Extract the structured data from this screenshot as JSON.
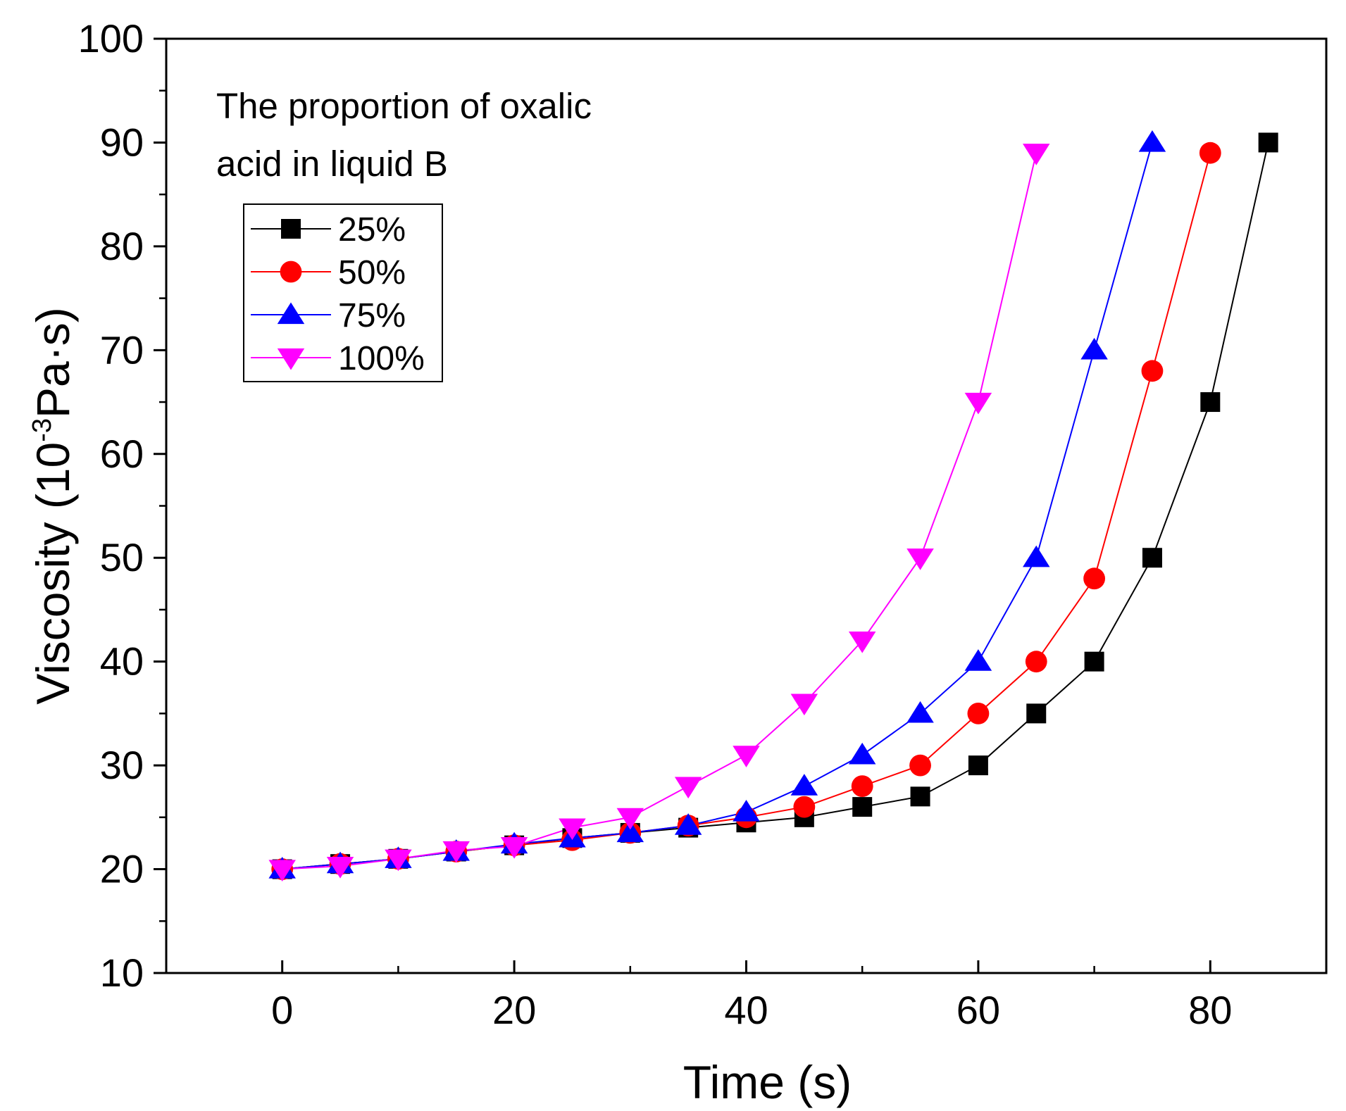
{
  "chart_data": {
    "type": "line",
    "title": "",
    "xlabel": "Time (s)",
    "ylabel_main": "Viscosity (10",
    "ylabel_sup": "-3",
    "ylabel_tail": "Pa·s)",
    "xlim": [
      -10,
      90
    ],
    "ylim": [
      10,
      100
    ],
    "xticks": [
      0,
      20,
      40,
      60,
      80
    ],
    "xticks_minor": [
      10,
      30,
      50,
      70
    ],
    "yticks": [
      10,
      20,
      30,
      40,
      50,
      60,
      70,
      80,
      90,
      100
    ],
    "yticks_minor": [
      15,
      25,
      35,
      45,
      55,
      65,
      75,
      85,
      95
    ],
    "annotation": [
      "The proportion of oxalic",
      "acid in liquid B"
    ],
    "legend_position": "upper-left",
    "series": [
      {
        "name": "25%",
        "color": "#000000",
        "marker": "square",
        "x": [
          0,
          5,
          10,
          15,
          20,
          25,
          30,
          35,
          40,
          45,
          50,
          55,
          60,
          65,
          70,
          75,
          80,
          85
        ],
        "y": [
          20,
          20.5,
          21,
          21.7,
          22.3,
          23,
          23.5,
          24,
          24.5,
          25,
          26,
          27,
          30,
          35,
          40,
          50,
          65,
          90
        ]
      },
      {
        "name": "50%",
        "color": "#ff0000",
        "marker": "circle",
        "x": [
          0,
          5,
          10,
          15,
          20,
          25,
          30,
          35,
          40,
          45,
          50,
          55,
          60,
          65,
          70,
          75,
          80
        ],
        "y": [
          20,
          20.5,
          21,
          21.7,
          22.3,
          22.8,
          23.5,
          24.2,
          25,
          26,
          28,
          30,
          35,
          40,
          48,
          68,
          89
        ]
      },
      {
        "name": "75%",
        "color": "#0000ff",
        "marker": "triangle-up",
        "x": [
          0,
          5,
          10,
          15,
          20,
          25,
          30,
          35,
          40,
          45,
          50,
          55,
          60,
          65,
          70,
          75
        ],
        "y": [
          20,
          20.5,
          21,
          21.7,
          22.4,
          23,
          23.5,
          24.2,
          25.5,
          28,
          31,
          35,
          40,
          50,
          70,
          90
        ]
      },
      {
        "name": "100%",
        "color": "#ff00ff",
        "marker": "triangle-down",
        "x": [
          0,
          5,
          10,
          15,
          20,
          25,
          30,
          35,
          40,
          45,
          50,
          55,
          60,
          65
        ],
        "y": [
          20,
          20.3,
          21,
          21.8,
          22.2,
          24,
          25,
          28,
          31,
          36,
          42,
          50,
          65,
          89
        ]
      }
    ]
  }
}
